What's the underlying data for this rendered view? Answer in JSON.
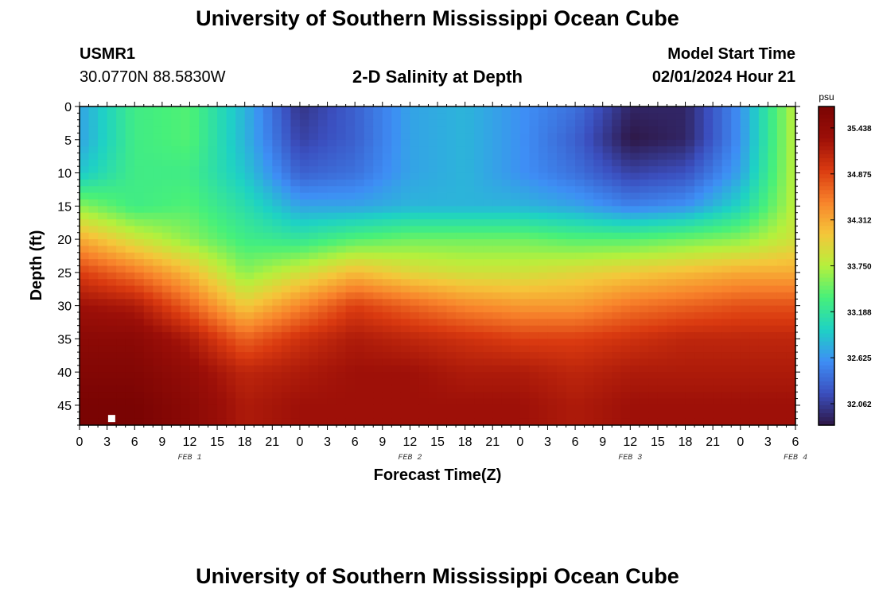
{
  "header": {
    "title_top": "University of Southern Mississippi Ocean Cube",
    "title_bottom": "University of Southern Mississippi Ocean Cube",
    "station_id": "USMR1",
    "station_coords": "30.0770N  88.5830W",
    "subtitle": "2-D Salinity at Depth",
    "model_label": "Model Start Time",
    "model_time": "02/01/2024 Hour 21"
  },
  "chart_data": {
    "type": "heatmap",
    "title": "2-D Salinity at Depth",
    "xlabel": "Forecast Time(Z)",
    "ylabel": "Depth (ft)",
    "x_tick_labels": [
      "0",
      "3",
      "6",
      "9",
      "12",
      "15",
      "18",
      "21",
      "0",
      "3",
      "6",
      "9",
      "12",
      "15",
      "18",
      "21",
      "0",
      "3",
      "6",
      "9",
      "12",
      "15",
      "18",
      "21",
      "0",
      "3",
      "6"
    ],
    "x_range_hours": [
      0,
      78
    ],
    "day_labels": [
      {
        "label": "FEB 1",
        "hour": 12
      },
      {
        "label": "FEB 2",
        "hour": 36
      },
      {
        "label": "FEB 3",
        "hour": 60
      },
      {
        "label": "FEB 4",
        "hour": 78
      }
    ],
    "y_ticks": [
      0,
      5,
      10,
      15,
      20,
      25,
      30,
      35,
      40,
      45
    ],
    "ylim": [
      0,
      48
    ],
    "y_inverted": true,
    "colorbar": {
      "unit": "psu",
      "ticks": [
        "35.438",
        "34.875",
        "34.312",
        "33.750",
        "33.188",
        "32.625",
        "32.062"
      ],
      "min": 31.8,
      "max": 35.7,
      "colors": [
        "#2e1746",
        "#3b4fbf",
        "#3e8ef5",
        "#1ed2c4",
        "#47f07a",
        "#b6f03c",
        "#f5c63a",
        "#f8832b",
        "#da3a10",
        "#9c0f08",
        "#7a0403"
      ]
    },
    "grid_hours": [
      0,
      6,
      12,
      18,
      24,
      30,
      36,
      42,
      48,
      54,
      60,
      66,
      72,
      78
    ],
    "grid_depths": [
      0,
      5,
      10,
      15,
      20,
      25,
      30,
      35,
      40,
      45,
      48
    ],
    "salinity_grid": [
      [
        32.7,
        33.3,
        33.4,
        32.8,
        32.0,
        32.3,
        32.7,
        32.8,
        32.6,
        32.4,
        31.9,
        31.9,
        32.6,
        33.8
      ],
      [
        32.7,
        33.3,
        33.4,
        32.8,
        32.1,
        32.3,
        32.7,
        32.8,
        32.6,
        32.3,
        31.8,
        31.9,
        32.6,
        33.8
      ],
      [
        32.9,
        33.3,
        33.3,
        32.9,
        32.3,
        32.4,
        32.7,
        32.8,
        32.6,
        32.4,
        32.1,
        32.2,
        32.7,
        33.8
      ],
      [
        33.6,
        33.3,
        33.4,
        33.1,
        32.7,
        32.7,
        32.8,
        32.8,
        32.8,
        32.7,
        32.5,
        32.6,
        33.0,
        33.8
      ],
      [
        34.3,
        33.9,
        33.6,
        33.3,
        33.2,
        33.4,
        33.5,
        33.5,
        33.5,
        33.4,
        33.4,
        33.5,
        33.6,
        33.9
      ],
      [
        34.9,
        34.6,
        34.2,
        33.6,
        33.9,
        34.2,
        34.0,
        33.9,
        33.9,
        34.0,
        34.1,
        34.2,
        34.3,
        34.3
      ],
      [
        35.3,
        35.2,
        34.7,
        34.1,
        34.5,
        34.9,
        34.7,
        34.5,
        34.4,
        34.4,
        34.6,
        34.7,
        34.8,
        34.8
      ],
      [
        35.5,
        35.5,
        35.2,
        34.7,
        35.0,
        35.2,
        35.1,
        35.0,
        34.9,
        34.9,
        35.0,
        35.1,
        35.1,
        35.1
      ],
      [
        35.6,
        35.6,
        35.4,
        35.1,
        35.2,
        35.3,
        35.3,
        35.2,
        35.2,
        35.1,
        35.2,
        35.2,
        35.2,
        35.2
      ],
      [
        35.7,
        35.7,
        35.5,
        35.2,
        35.3,
        35.3,
        35.3,
        35.3,
        35.3,
        35.2,
        35.3,
        35.3,
        35.3,
        35.3
      ],
      [
        35.7,
        35.7,
        35.5,
        35.2,
        35.3,
        35.3,
        35.3,
        35.3,
        35.3,
        35.2,
        35.3,
        35.3,
        35.3,
        35.3
      ]
    ],
    "marker": {
      "hour": 3.5,
      "depth": 47
    }
  }
}
